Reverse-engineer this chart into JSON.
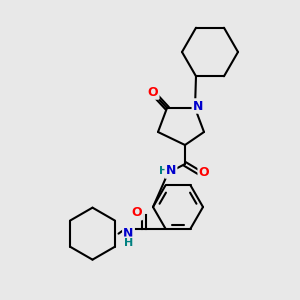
{
  "bg_color": "#e8e8e8",
  "bond_color": "#000000",
  "bond_width": 1.5,
  "atom_colors": {
    "N": "#0000cc",
    "O": "#ff0000",
    "NH": "#008080",
    "C": "#000000"
  },
  "font_size": 9,
  "figsize": [
    3.0,
    3.0
  ],
  "dpi": 100
}
